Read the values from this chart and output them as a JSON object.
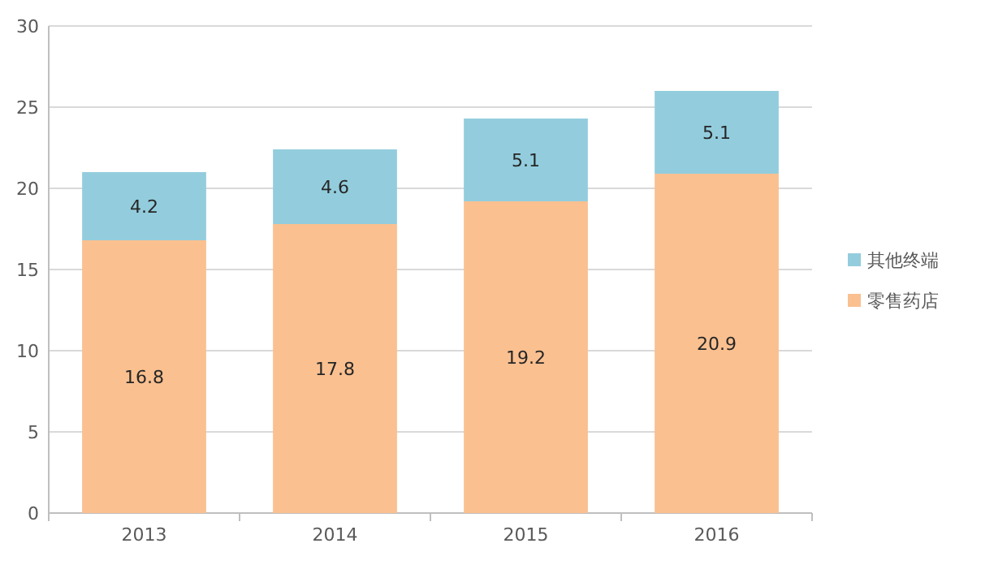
{
  "chart_data": {
    "type": "bar",
    "stacked": true,
    "categories": [
      "2013",
      "2014",
      "2015",
      "2016"
    ],
    "series": [
      {
        "name": "零售药店",
        "color": "#fac090",
        "values": [
          16.8,
          17.8,
          19.2,
          20.9
        ]
      },
      {
        "name": "其他终端",
        "color": "#93cddd",
        "values": [
          4.2,
          4.6,
          5.1,
          5.1
        ]
      }
    ],
    "ylim": [
      0,
      30
    ],
    "yticks": [
      0,
      5,
      10,
      15,
      20,
      25,
      30
    ],
    "grid": "y",
    "legend": "right",
    "data_labels": true
  }
}
